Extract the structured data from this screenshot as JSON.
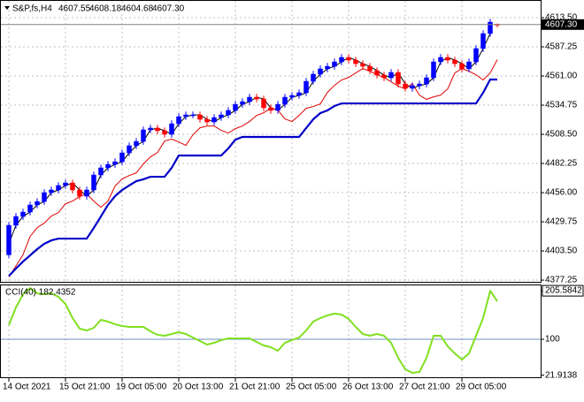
{
  "chart_data": [
    {
      "type": "candlestick",
      "header": {
        "symbol": "S&P,fs,H4",
        "ohlc": [
          "4607.55",
          "4608.18",
          "4604.68",
          "4607.30"
        ]
      },
      "categories": [
        "14 Oct 2021",
        null,
        null,
        null,
        null,
        null,
        null,
        null,
        "15 Oct 21:00",
        null,
        null,
        null,
        null,
        null,
        null,
        null,
        "19 Oct 05:00",
        null,
        null,
        null,
        null,
        null,
        null,
        null,
        "20 Oct 13:00",
        null,
        null,
        null,
        null,
        null,
        null,
        null,
        "21 Oct 21:00",
        null,
        null,
        null,
        null,
        null,
        null,
        null,
        "25 Oct 05:00",
        null,
        null,
        null,
        null,
        null,
        null,
        null,
        "26 Oct 13:00",
        null,
        null,
        null,
        null,
        null,
        null,
        null,
        "27 Oct 21:00",
        null,
        null,
        null,
        null,
        null,
        null,
        null,
        "29 Oct 05:00",
        null,
        null,
        null,
        null,
        null
      ],
      "open": [
        4400.0,
        4426.6,
        4434.5,
        4438.5,
        4444.9,
        4448.0,
        4456.0,
        4458.4,
        4462.4,
        4464.7,
        4458.4,
        4452.8,
        4458.4,
        4471.9,
        4478.3,
        4481.4,
        4483.8,
        4491.8,
        4498.2,
        4502.1,
        4512.5,
        4514.1,
        4511.7,
        4508.5,
        4518.0,
        4524.4,
        4526.0,
        4526.0,
        4522.0,
        4519.6,
        4523.6,
        4526.0,
        4530.0,
        4535.5,
        4537.9,
        4541.9,
        4540.3,
        4532.4,
        4530.0,
        4535.5,
        4541.9,
        4543.5,
        4545.9,
        4556.2,
        4562.6,
        4567.4,
        4569.7,
        4573.7,
        4577.7,
        4575.3,
        4572.1,
        4569.7,
        4565.8,
        4561.8,
        4559.4,
        4564.2,
        4553.8,
        4549.9,
        4552.2,
        4553.8,
        4559.4,
        4573.7,
        4577.7,
        4575.3,
        4572.1,
        4567.4,
        4573.7,
        4585.7,
        4599.2,
        4607.55
      ],
      "high": [
        4429.6,
        4437.5,
        4441.5,
        4447.9,
        4451.0,
        4459.0,
        4461.4,
        4465.4,
        4467.7,
        4467.7,
        4461.4,
        4461.4,
        4474.9,
        4481.3,
        4484.4,
        4486.8,
        4494.8,
        4501.2,
        4505.1,
        4515.5,
        4517.1,
        4517.1,
        4514.7,
        4521.0,
        4527.4,
        4529.0,
        4529.0,
        4529.0,
        4525.0,
        4526.6,
        4529.0,
        4533.0,
        4538.5,
        4540.9,
        4544.9,
        4544.9,
        4543.3,
        4535.4,
        4538.5,
        4544.9,
        4546.5,
        4548.9,
        4559.2,
        4565.6,
        4570.4,
        4572.7,
        4576.7,
        4580.7,
        4580.7,
        4578.3,
        4575.1,
        4572.7,
        4568.8,
        4564.8,
        4567.2,
        4567.2,
        4556.8,
        4555.2,
        4556.8,
        4562.4,
        4576.7,
        4580.7,
        4580.7,
        4578.3,
        4575.1,
        4576.7,
        4588.7,
        4602.2,
        4612.5,
        4608.18
      ],
      "low": [
        4397.0,
        4423.6,
        4431.5,
        4435.5,
        4441.9,
        4445.0,
        4453.0,
        4455.4,
        4459.4,
        4455.4,
        4449.8,
        4449.8,
        4455.4,
        4468.9,
        4475.3,
        4478.4,
        4480.8,
        4488.8,
        4495.2,
        4499.1,
        4509.5,
        4508.7,
        4505.5,
        4505.5,
        4515.0,
        4521.4,
        4523.0,
        4519.0,
        4516.6,
        4516.6,
        4520.6,
        4523.0,
        4527.0,
        4532.5,
        4534.9,
        4537.3,
        4529.4,
        4527.0,
        4527.0,
        4532.5,
        4538.9,
        4540.5,
        4542.9,
        4553.2,
        4559.6,
        4564.4,
        4566.7,
        4570.7,
        4572.3,
        4569.1,
        4566.7,
        4562.8,
        4558.8,
        4556.4,
        4556.4,
        4550.8,
        4546.9,
        4546.9,
        4549.2,
        4550.8,
        4556.4,
        4570.7,
        4572.3,
        4569.1,
        4564.4,
        4564.4,
        4570.7,
        4582.7,
        4596.2,
        4604.68
      ],
      "close": [
        4426.6,
        4434.5,
        4438.5,
        4444.9,
        4448.0,
        4456.0,
        4458.4,
        4462.4,
        4464.7,
        4458.4,
        4452.8,
        4458.4,
        4471.9,
        4478.3,
        4481.4,
        4483.8,
        4491.8,
        4498.2,
        4502.1,
        4512.5,
        4514.1,
        4511.7,
        4508.5,
        4518.0,
        4524.4,
        4526.0,
        4526.0,
        4522.0,
        4519.6,
        4523.6,
        4526.0,
        4530.0,
        4535.5,
        4537.9,
        4541.9,
        4540.3,
        4532.4,
        4530.0,
        4535.5,
        4541.9,
        4543.5,
        4545.9,
        4556.2,
        4562.6,
        4567.4,
        4569.7,
        4573.7,
        4577.7,
        4575.3,
        4572.1,
        4569.7,
        4565.8,
        4561.8,
        4559.4,
        4564.2,
        4553.8,
        4549.9,
        4552.2,
        4553.8,
        4559.4,
        4573.7,
        4577.7,
        4575.3,
        4572.1,
        4567.4,
        4573.7,
        4585.7,
        4599.2,
        4609.5,
        4607.3
      ],
      "up_color": "#0000ff",
      "down_color": "#ff0000",
      "overlays": [
        {
          "color": "#000000",
          "values": [
            4410,
            4426.6,
            4434.5,
            4438.5,
            4444.9,
            4448.0,
            4456.0,
            4458.4,
            4462.4,
            4464.7,
            4458.4,
            4452.8,
            4458.4,
            4471.9,
            4478.3,
            4481.4,
            4483.8,
            4491.8,
            4498.2,
            4502.1,
            4512.5,
            4514.1,
            4511.7,
            4508.5,
            4518.0,
            4524.4,
            4526.0,
            4526.0,
            4522.0,
            4519.6,
            4523.6,
            4526.0,
            4530.0,
            4535.5,
            4537.9,
            4541.9,
            4540.3,
            4532.4,
            4530.0,
            4535.5,
            4541.9,
            4543.5,
            4545.9,
            4556.2,
            4562.6,
            4567.4,
            4569.7,
            4573.7,
            4577.7,
            4575.3,
            4572.1,
            4569.7,
            4565.8,
            4561.8,
            4559.4,
            4564.2,
            4553.8,
            4549.9,
            4552.2,
            4553.8,
            4559.4,
            4573.7,
            4577.7,
            4575.3,
            4572.1,
            4567.4,
            4573.7,
            4585.7,
            4599.2
          ]
        },
        {
          "color": "#e00000",
          "values": [
            4380,
            4390,
            4400,
            4416.6,
            4424.5,
            4428.5,
            4434.9,
            4438.0,
            4446.0,
            4448.4,
            4452.4,
            4454.7,
            4448.4,
            4442.8,
            4448.4,
            4461.9,
            4468.3,
            4471.4,
            4473.8,
            4481.8,
            4488.2,
            4492.1,
            4502.5,
            4504.1,
            4501.7,
            4498.5,
            4508.0,
            4514.4,
            4516.0,
            4516.0,
            4512.0,
            4509.6,
            4513.6,
            4516.0,
            4520.0,
            4525.5,
            4527.9,
            4531.9,
            4530.3,
            4522.4,
            4520.0,
            4525.5,
            4531.9,
            4533.5,
            4535.9,
            4546.2,
            4552.6,
            4557.4,
            4559.7,
            4563.7,
            4567.7,
            4565.3,
            4562.1,
            4559.7,
            4555.8,
            4551.8,
            4549.4,
            4554.2,
            4543.8,
            4539.9,
            4542.2,
            4543.8,
            4549.4,
            4563.7,
            4567.7,
            4565.3,
            4562.1,
            4557.4,
            4563.7,
            4575.7
          ]
        },
        {
          "color": "#0000c8",
          "values": [
            4381,
            4387.6,
            4393.9,
            4399.5,
            4405.1,
            4409.9,
            4413.0,
            4414.6,
            4414.6,
            4414.6,
            4414.6,
            4414.6,
            4424.2,
            4434.5,
            4444.9,
            4452.8,
            4458.4,
            4462.4,
            4466.3,
            4468.0,
            4470.3,
            4470.3,
            4470.3,
            4478.3,
            4489.4,
            4489.4,
            4489.4,
            4489.4,
            4489.4,
            4489.4,
            4489.4,
            4495.8,
            4503.7,
            4506.1,
            4506.1,
            4506.1,
            4506.1,
            4506.1,
            4506.1,
            4506.1,
            4506.1,
            4506.1,
            4514.1,
            4522.0,
            4527.6,
            4530.0,
            4534.0,
            4536.3,
            4536.3,
            4536.3,
            4536.3,
            4536.3,
            4536.3,
            4536.3,
            4536.3,
            4536.3,
            4536.3,
            4536.3,
            4536.3,
            4536.3,
            4536.3,
            4536.3,
            4536.3,
            4536.3,
            4536.3,
            4536.3,
            4536.3,
            4545.9,
            4557.8,
            4557.8
          ]
        }
      ],
      "last_price": {
        "value": 4607.3,
        "label": "4607.30"
      },
      "ylim": [
        4374.9,
        4629.4
      ],
      "yticks": [
        {
          "value": 4613.5,
          "label": "4613.50"
        },
        {
          "value": 4587.25,
          "label": "4587.25"
        },
        {
          "value": 4561.0,
          "label": "4561.00"
        },
        {
          "value": 4534.75,
          "label": "4534.75"
        },
        {
          "value": 4508.5,
          "label": "4508.50"
        },
        {
          "value": 4482.25,
          "label": "4482.25"
        },
        {
          "value": 4456.0,
          "label": "4456.00"
        },
        {
          "value": 4429.75,
          "label": "4429.75"
        },
        {
          "value": 4403.5,
          "label": "4403.50"
        },
        {
          "value": 4377.25,
          "label": "4377.25"
        }
      ],
      "grid": true,
      "grid_color": "#c0c0c0"
    },
    {
      "type": "line",
      "title": "CCI(40) 182.4352",
      "color": "#80e020",
      "values": [
        130.8,
        169.2,
        198.1,
        211.5,
        200.0,
        198.1,
        200.0,
        192.3,
        176.9,
        146.2,
        123.1,
        119.2,
        125.0,
        142.3,
        138.5,
        132.7,
        128.8,
        126.9,
        126.9,
        126.9,
        117.3,
        109.6,
        107.7,
        111.5,
        115.4,
        111.5,
        103.8,
        96.2,
        88.5,
        92.3,
        98.1,
        101.9,
        101.9,
        101.9,
        101.9,
        94.2,
        86.5,
        82.7,
        75.0,
        92.3,
        98.1,
        103.8,
        119.2,
        138.5,
        146.2,
        151.9,
        155.8,
        153.8,
        144.2,
        126.9,
        111.5,
        107.7,
        111.5,
        107.7,
        92.3,
        59.6,
        34.6,
        26.9,
        28.8,
        59.6,
        107.7,
        107.7,
        84.6,
        69.2,
        55.8,
        69.2,
        107.7,
        146.2,
        205.5842,
        182.4352
      ],
      "ylim": [
        15.4,
        217.3
      ],
      "yticks": [
        205.5842,
        100,
        21.9138
      ],
      "levels": [
        100
      ],
      "level_color": "#6f8fc0"
    }
  ]
}
